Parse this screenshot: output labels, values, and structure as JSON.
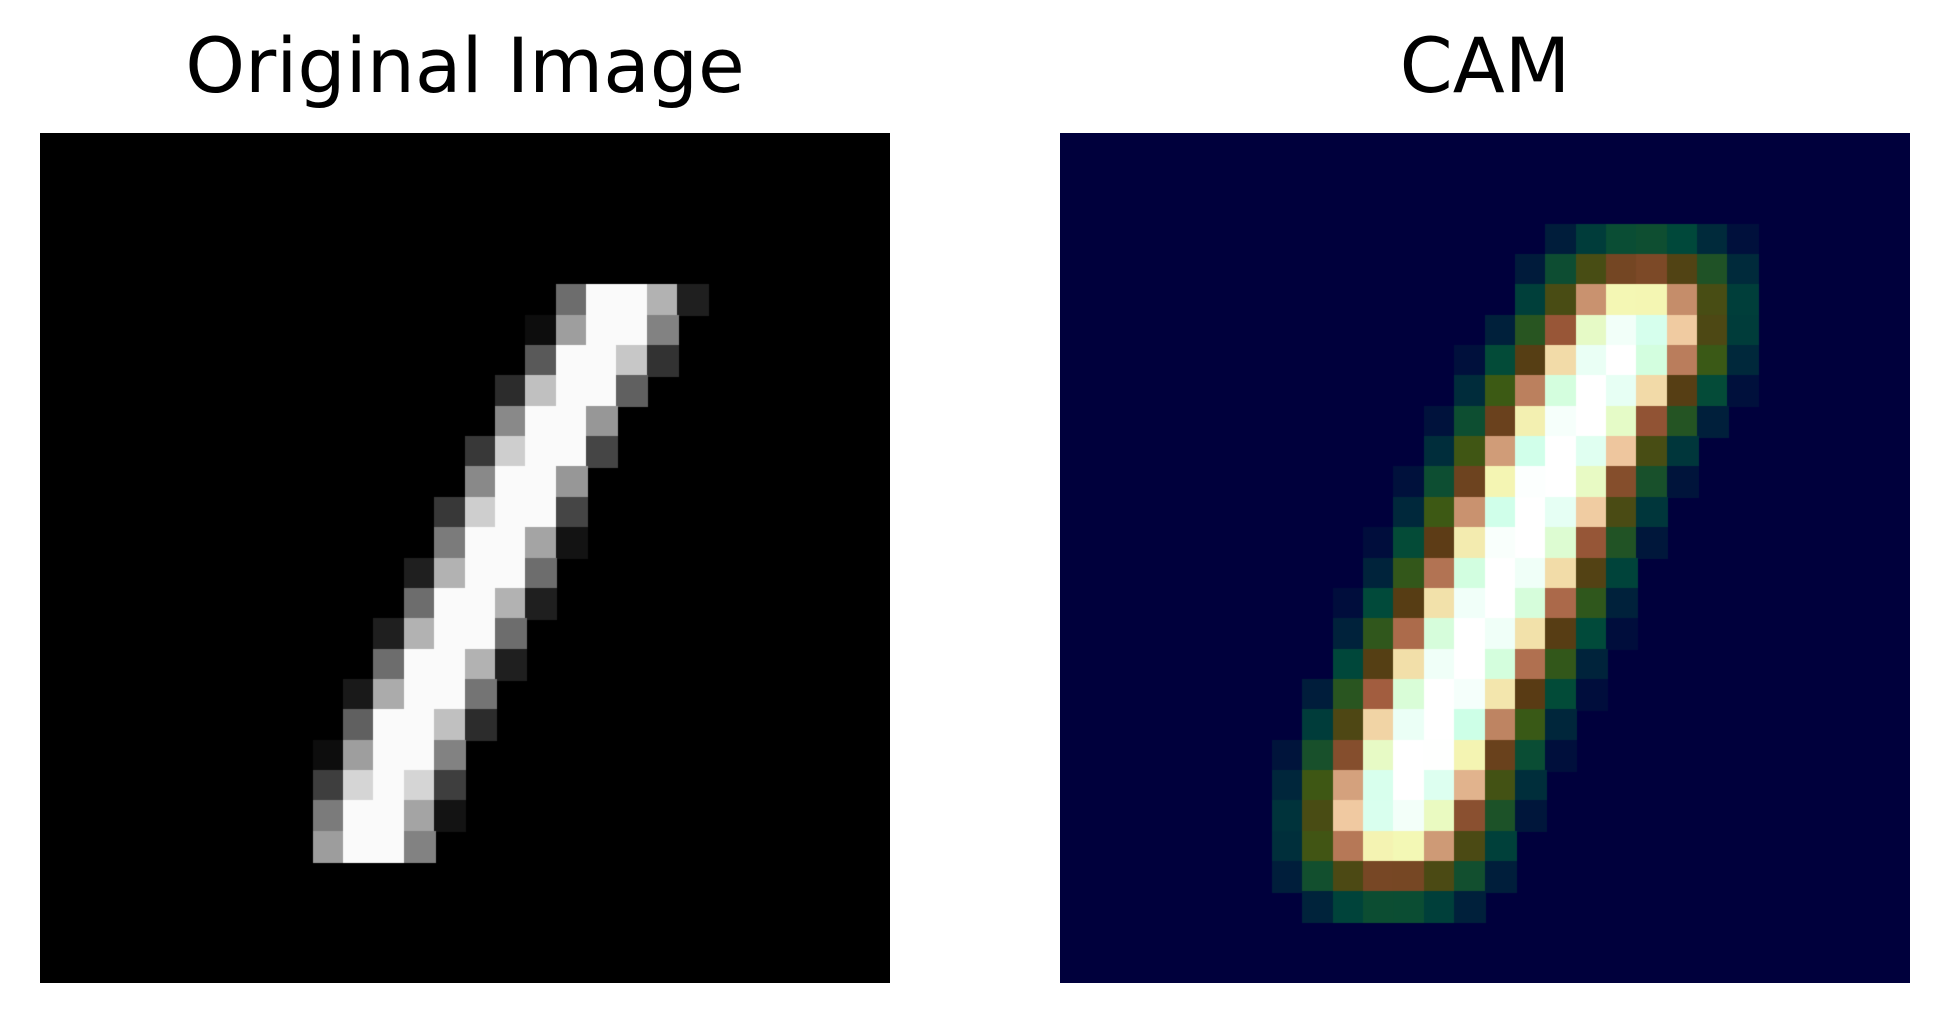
{
  "panels": [
    {
      "title": "Original Image"
    },
    {
      "title": "CAM"
    }
  ],
  "colors": {
    "background": "#ffffff",
    "image_background": "#000000",
    "cam_background": "#00003c",
    "cam_colormap": [
      "#00003c",
      "#004a3a",
      "#3c5a14",
      "#5a3a14",
      "#a05a3c",
      "#f0c8a0",
      "#f4f8b4",
      "#ccffe8",
      "#ffffff"
    ]
  }
}
